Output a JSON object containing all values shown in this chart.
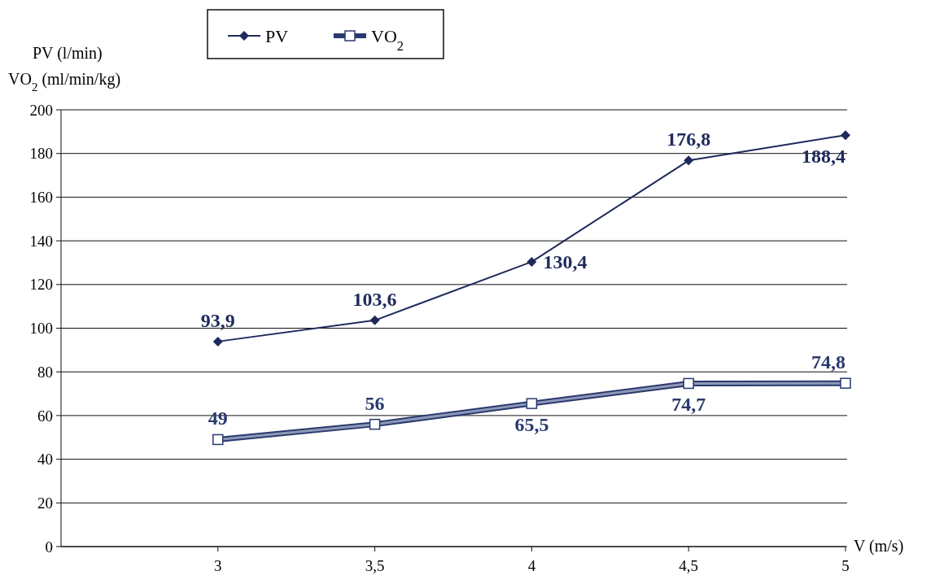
{
  "chart_data": {
    "type": "line",
    "xlabel": "V (m/s)",
    "ylabel": "PV (l/min)\nVO$_{2}$ (ml/min/kg)",
    "x": [
      3,
      3.5,
      4,
      4.5,
      5
    ],
    "xlim": [
      2.5,
      5
    ],
    "xticks": [
      3,
      {
        "value": 3.5,
        "label": "3,5"
      },
      4,
      {
        "value": 4.5,
        "label": "4,5"
      },
      5
    ],
    "ylim": [
      0,
      200
    ],
    "yticks": [
      0,
      20,
      40,
      60,
      80,
      100,
      120,
      140,
      160,
      180,
      200
    ],
    "grid": "y",
    "legend": "top left",
    "series": [
      {
        "name": "PV",
        "color": "#1f2a5c",
        "marker": "diamond",
        "values": [
          93.9,
          103.6,
          130.4,
          176.8,
          188.4
        ],
        "value_labels": [
          "93,9",
          "103,6",
          "130,4",
          "176,8",
          "188,4"
        ]
      },
      {
        "name": "VO$_{2}$",
        "color": "#2a3a6e",
        "marker": "square",
        "values": [
          49,
          56,
          65.5,
          74.7,
          74.8
        ],
        "value_labels": [
          "49",
          "56",
          "65,5",
          "74,7",
          "74,8"
        ]
      }
    ]
  }
}
